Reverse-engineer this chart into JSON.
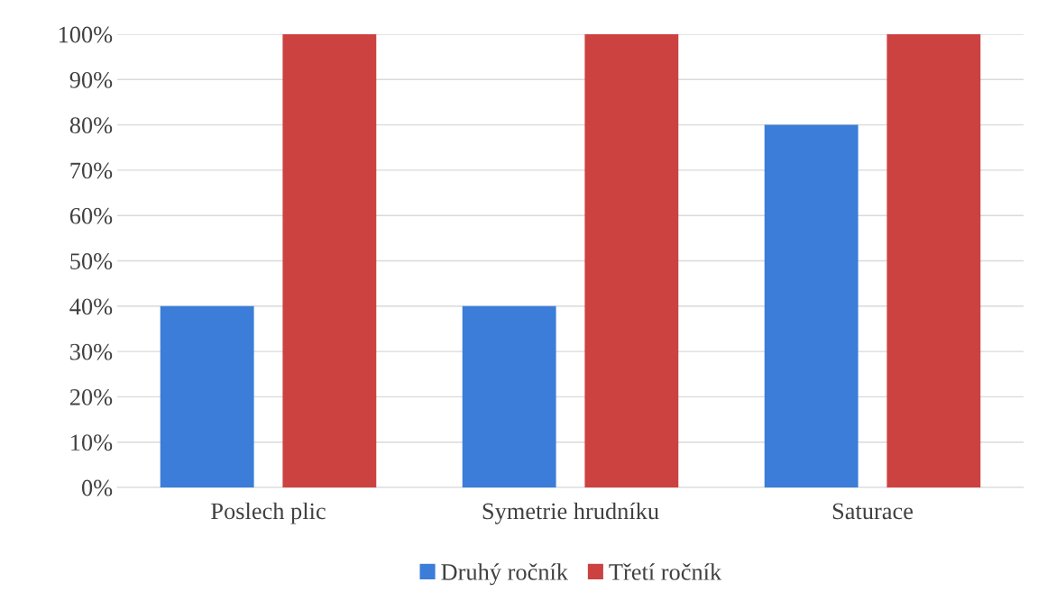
{
  "chart_data": {
    "type": "bar",
    "categories": [
      "Poslech plic",
      "Symetrie hrudníku",
      "Saturace"
    ],
    "series": [
      {
        "name": "Druhý ročník",
        "color": "#3b7dd8",
        "values": [
          40,
          40,
          80
        ]
      },
      {
        "name": "Třetí ročník",
        "color": "#cc4240",
        "values": [
          100,
          100,
          100
        ]
      }
    ],
    "ylim": [
      0,
      100
    ],
    "yticks": [
      {
        "value": 0,
        "label": "0%"
      },
      {
        "value": 10,
        "label": "10%"
      },
      {
        "value": 20,
        "label": "20%"
      },
      {
        "value": 30,
        "label": "30%"
      },
      {
        "value": 40,
        "label": "40%"
      },
      {
        "value": 50,
        "label": "50%"
      },
      {
        "value": 60,
        "label": "60%"
      },
      {
        "value": 70,
        "label": "70%"
      },
      {
        "value": 80,
        "label": "80%"
      },
      {
        "value": 90,
        "label": "90%"
      },
      {
        "value": 100,
        "label": "100%"
      }
    ],
    "grid": "y",
    "legend": "bottom"
  }
}
